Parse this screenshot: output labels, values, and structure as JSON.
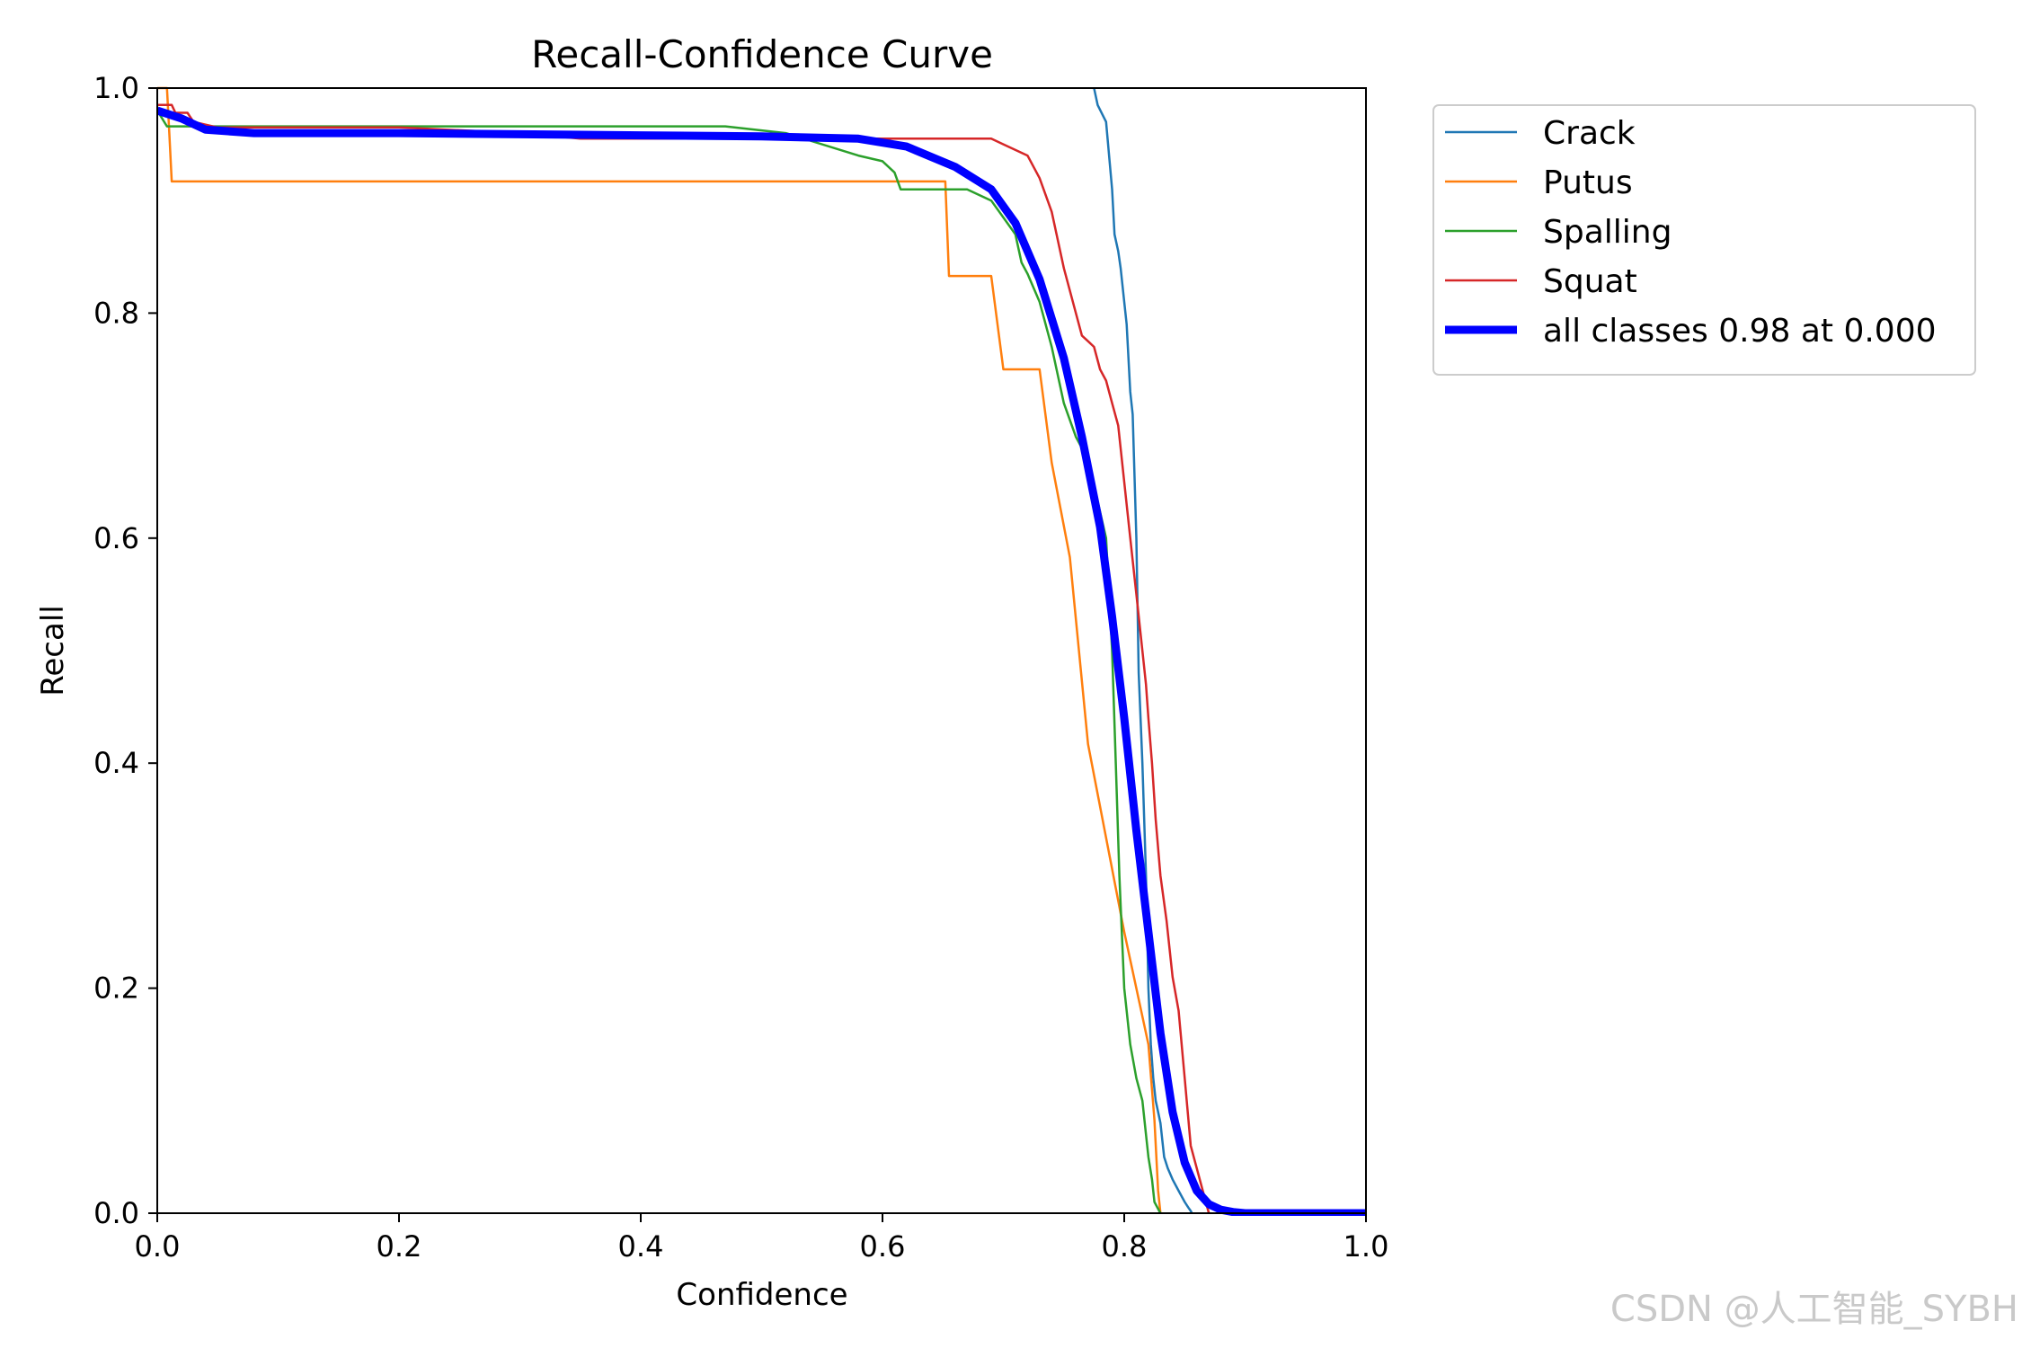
{
  "chart_data": {
    "type": "line",
    "title": "Recall-Confidence Curve",
    "xlabel": "Confidence",
    "ylabel": "Recall",
    "xlim": [
      0,
      1
    ],
    "ylim": [
      0,
      1
    ],
    "xticks": [
      "0.0",
      "0.2",
      "0.4",
      "0.6",
      "0.8",
      "1.0"
    ],
    "yticks": [
      "0.0",
      "0.2",
      "0.4",
      "0.6",
      "0.8",
      "1.0"
    ],
    "grid": false,
    "legend_position": "outside-top-right",
    "series": [
      {
        "name": "Crack",
        "color": "#1f77b4",
        "x": [
          0.775,
          0.778,
          0.785,
          0.79,
          0.792,
          0.795,
          0.797,
          0.8,
          0.802,
          0.805,
          0.807,
          0.81,
          0.812,
          0.815,
          0.818,
          0.82,
          0.822,
          0.824,
          0.826,
          0.828,
          0.83,
          0.833,
          0.836,
          0.84,
          0.845,
          0.85,
          0.853,
          0.855,
          0.856
        ],
        "y": [
          1.0,
          0.985,
          0.97,
          0.91,
          0.87,
          0.855,
          0.84,
          0.81,
          0.79,
          0.73,
          0.71,
          0.6,
          0.48,
          0.4,
          0.3,
          0.2,
          0.15,
          0.12,
          0.1,
          0.09,
          0.08,
          0.05,
          0.04,
          0.03,
          0.02,
          0.01,
          0.005,
          0.002,
          0.0
        ]
      },
      {
        "name": "Putus",
        "color": "#ff7f0e",
        "x": [
          0.0,
          0.008,
          0.01,
          0.012,
          0.3,
          0.5,
          0.6,
          0.652,
          0.655,
          0.69,
          0.7,
          0.73,
          0.74,
          0.755,
          0.77,
          0.8,
          0.82,
          0.825,
          0.828,
          0.83
        ],
        "y": [
          1.0,
          1.0,
          0.96,
          0.917,
          0.917,
          0.917,
          0.917,
          0.917,
          0.833,
          0.833,
          0.75,
          0.75,
          0.667,
          0.583,
          0.417,
          0.25,
          0.15,
          0.083,
          0.02,
          0.0
        ]
      },
      {
        "name": "Spalling",
        "color": "#2ca02c",
        "x": [
          0.0,
          0.008,
          0.02,
          0.2,
          0.47,
          0.52,
          0.58,
          0.6,
          0.61,
          0.615,
          0.65,
          0.67,
          0.69,
          0.7,
          0.71,
          0.715,
          0.72,
          0.73,
          0.74,
          0.75,
          0.76,
          0.77,
          0.785,
          0.79,
          0.793,
          0.796,
          0.8,
          0.805,
          0.81,
          0.815,
          0.818,
          0.82,
          0.823,
          0.825,
          0.83
        ],
        "y": [
          0.98,
          0.966,
          0.966,
          0.966,
          0.966,
          0.96,
          0.94,
          0.935,
          0.925,
          0.91,
          0.91,
          0.91,
          0.9,
          0.885,
          0.87,
          0.845,
          0.835,
          0.81,
          0.77,
          0.72,
          0.69,
          0.67,
          0.6,
          0.5,
          0.4,
          0.3,
          0.2,
          0.15,
          0.12,
          0.1,
          0.07,
          0.05,
          0.03,
          0.01,
          0.0
        ]
      },
      {
        "name": "Squat",
        "color": "#d62728",
        "x": [
          0.0,
          0.012,
          0.015,
          0.025,
          0.03,
          0.05,
          0.2,
          0.3,
          0.35,
          0.5,
          0.65,
          0.69,
          0.7,
          0.72,
          0.73,
          0.74,
          0.75,
          0.76,
          0.765,
          0.77,
          0.775,
          0.78,
          0.785,
          0.79,
          0.795,
          0.8,
          0.805,
          0.81,
          0.815,
          0.818,
          0.82,
          0.823,
          0.826,
          0.83,
          0.835,
          0.84,
          0.845,
          0.85,
          0.855,
          0.86,
          0.865,
          0.87
        ],
        "y": [
          0.985,
          0.985,
          0.978,
          0.978,
          0.97,
          0.965,
          0.965,
          0.96,
          0.955,
          0.955,
          0.955,
          0.955,
          0.95,
          0.94,
          0.92,
          0.89,
          0.84,
          0.8,
          0.78,
          0.775,
          0.77,
          0.75,
          0.74,
          0.72,
          0.7,
          0.65,
          0.6,
          0.55,
          0.5,
          0.47,
          0.44,
          0.4,
          0.35,
          0.3,
          0.26,
          0.21,
          0.18,
          0.12,
          0.06,
          0.04,
          0.02,
          0.0
        ]
      },
      {
        "name": "all classes 0.98 at 0.000",
        "color": "#0000ff",
        "x": [
          0.0,
          0.02,
          0.04,
          0.08,
          0.2,
          0.4,
          0.5,
          0.58,
          0.62,
          0.66,
          0.69,
          0.71,
          0.73,
          0.75,
          0.765,
          0.78,
          0.79,
          0.8,
          0.81,
          0.82,
          0.83,
          0.84,
          0.85,
          0.86,
          0.87,
          0.88,
          0.89,
          0.9,
          1.0
        ],
        "y": [
          0.98,
          0.973,
          0.963,
          0.96,
          0.96,
          0.958,
          0.957,
          0.955,
          0.948,
          0.93,
          0.91,
          0.88,
          0.83,
          0.76,
          0.69,
          0.61,
          0.53,
          0.44,
          0.34,
          0.25,
          0.16,
          0.09,
          0.045,
          0.02,
          0.008,
          0.003,
          0.001,
          0.0,
          0.0
        ]
      }
    ]
  },
  "watermark": "CSDN @人工智能_SYBH"
}
